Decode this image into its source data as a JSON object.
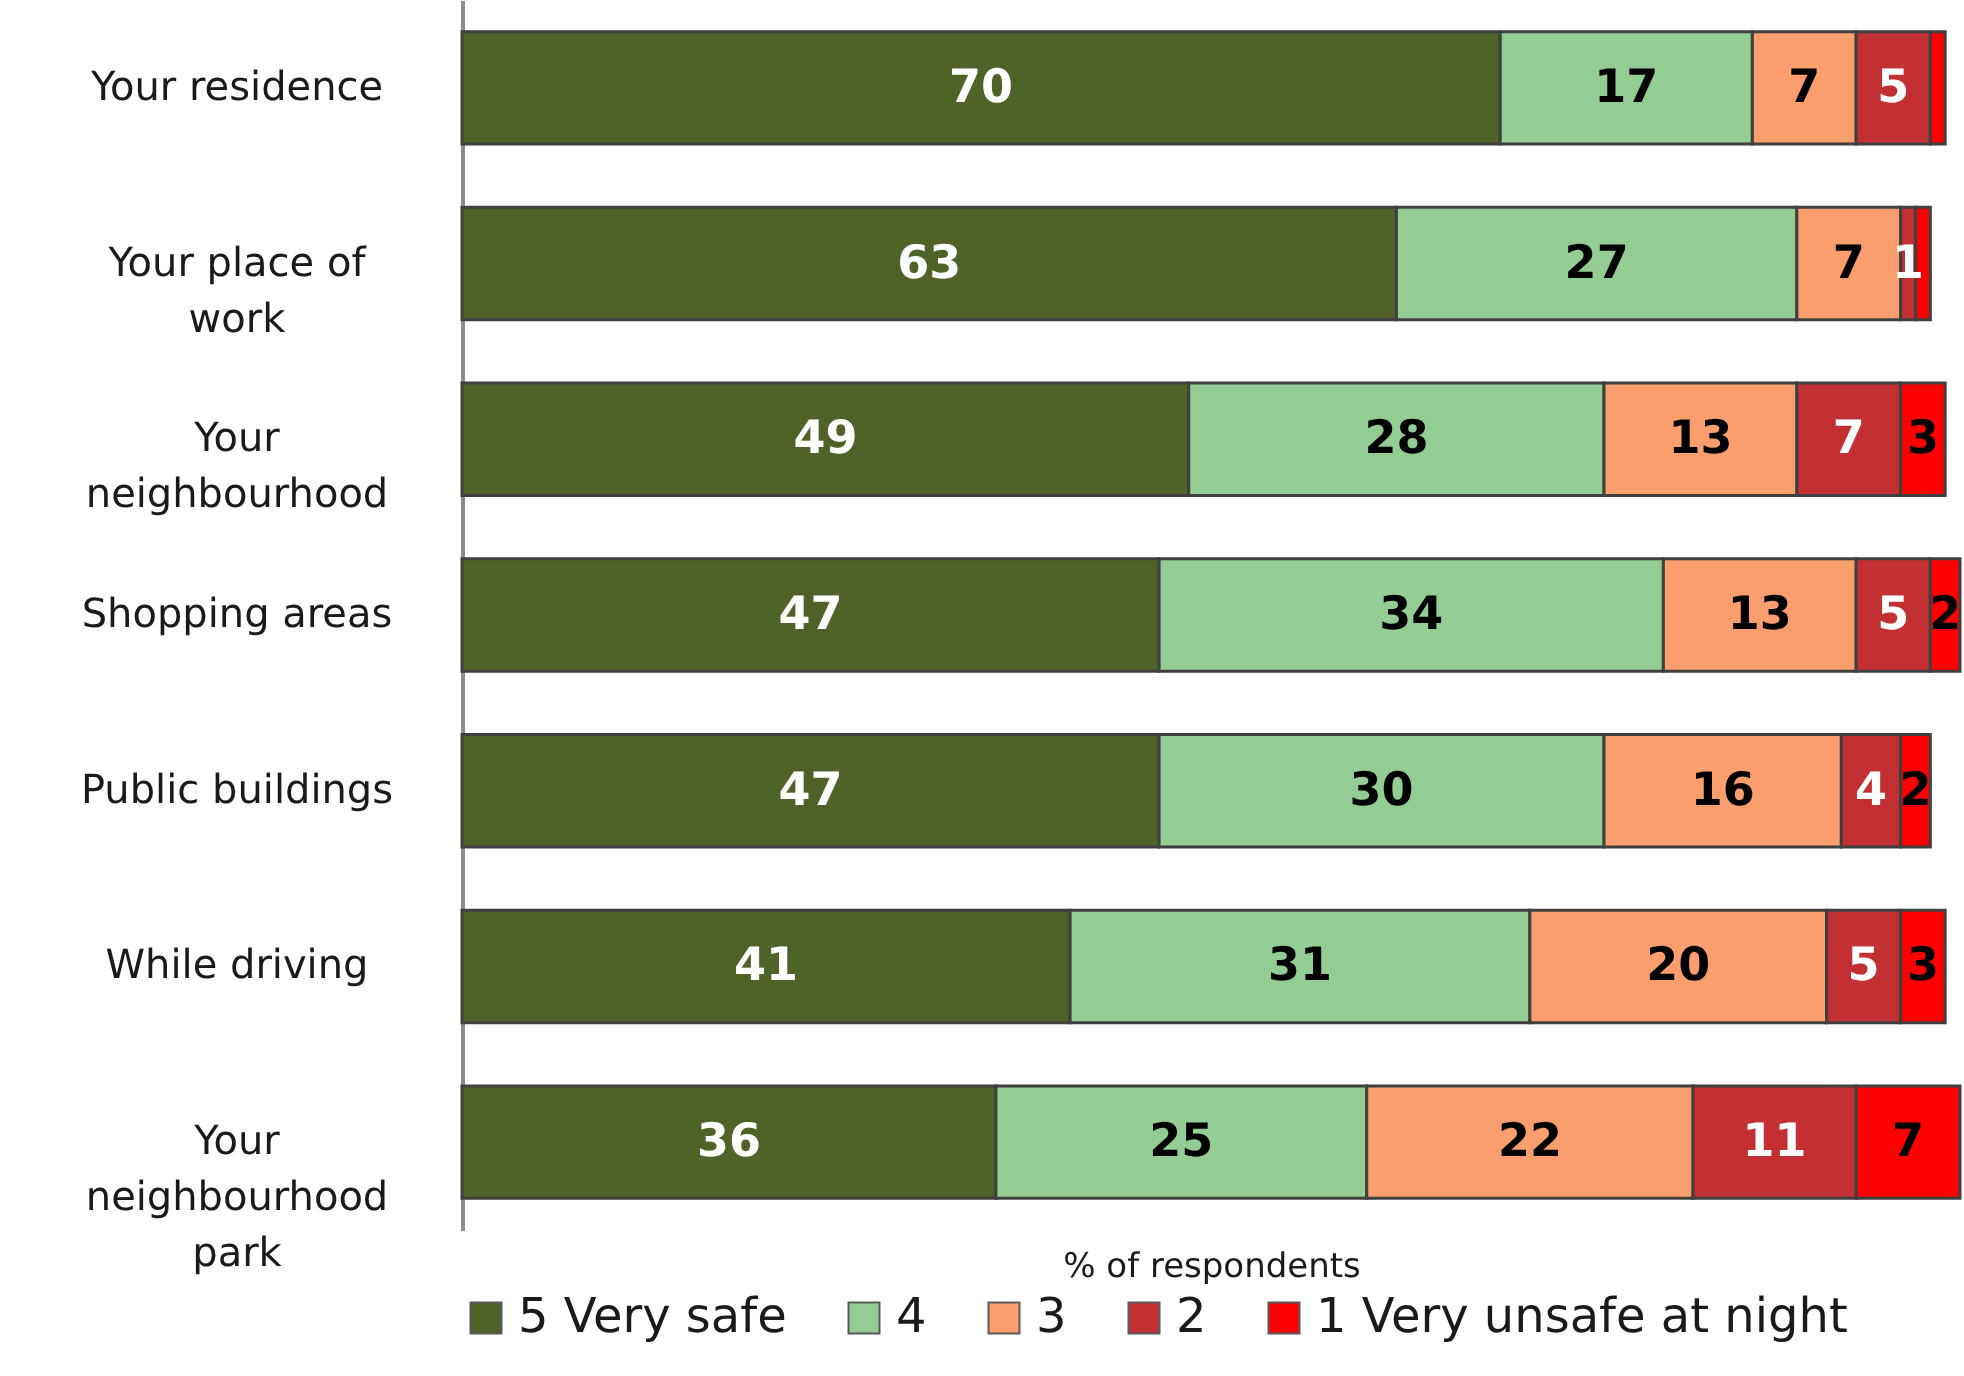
{
  "chart_data": {
    "type": "bar",
    "orientation": "horizontal",
    "stacked": true,
    "categories": [
      "Your residence",
      "Your place of work",
      "Your neighbourhood",
      "Shopping areas",
      "Public buildings",
      "While driving",
      "Your neighbourhood park"
    ],
    "xlabel": "% of respondents",
    "xlim": [
      0,
      101
    ],
    "tick_labels": "y",
    "legend": "bottom",
    "series": [
      {
        "name": "5 Very safe",
        "color": "#4f6228",
        "values": [
          70,
          63,
          49,
          47,
          47,
          41,
          36
        ],
        "value_labels": [
          "70",
          "63",
          "49",
          "47",
          "47",
          "41",
          "36"
        ]
      },
      {
        "name": "4",
        "color": "#93cd93",
        "values": [
          17,
          27,
          28,
          34,
          30,
          31,
          25
        ],
        "value_labels": [
          "17",
          "27",
          "28",
          "34",
          "30",
          "31",
          "25"
        ]
      },
      {
        "name": "3",
        "color": "#f99e6c",
        "values": [
          7,
          7,
          13,
          13,
          16,
          20,
          22
        ],
        "value_labels": [
          "7",
          "7",
          "13",
          "13",
          "16",
          "20",
          "22"
        ]
      },
      {
        "name": "2",
        "color": "#c33033",
        "values": [
          5,
          1,
          7,
          5,
          4,
          5,
          11
        ],
        "value_labels": [
          "5",
          "1",
          "7",
          "5",
          "4",
          "5",
          "11"
        ]
      },
      {
        "name": "1 Very unsafe at night",
        "color": "#ff0000",
        "values": [
          1,
          1,
          3,
          2,
          2,
          3,
          7
        ],
        "value_labels": [
          null,
          null,
          "3",
          "2",
          "2",
          "3",
          "7"
        ]
      }
    ]
  }
}
